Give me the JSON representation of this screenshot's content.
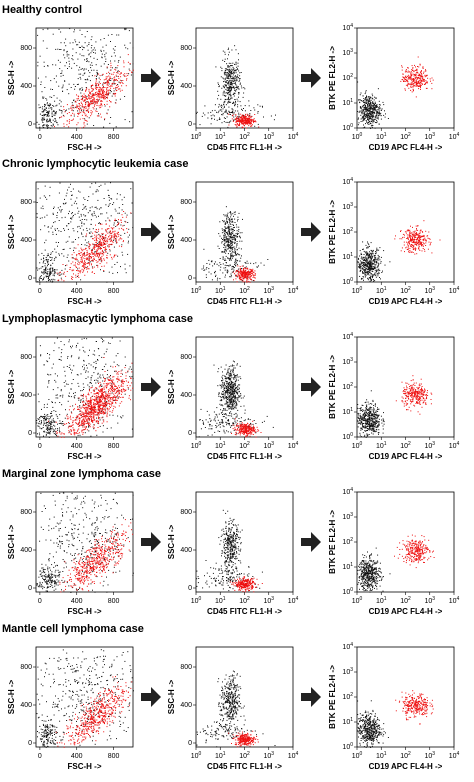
{
  "figure": {
    "rows": [
      {
        "title": "Healthy control"
      },
      {
        "title": "Chronic lymphocytic leukemia case"
      },
      {
        "title": "Lymphoplasmacytic lymphoma case"
      },
      {
        "title": "Marginal zone lymphoma case"
      },
      {
        "title": "Mantle cell lymphoma case"
      }
    ],
    "colors": {
      "gated": "#ee1111",
      "ungated": "#111111",
      "arrow": "#222222"
    }
  },
  "chart_data": [
    {
      "type": "scatter",
      "panel": "FSC vs SSC",
      "xlabel": "FSC-H ->",
      "ylabel": "SSC-H ->",
      "xlim": [
        0,
        1023
      ],
      "ylim": [
        0,
        1023
      ],
      "xticks": [
        "0",
        "400",
        "800"
      ],
      "yticks": [
        "0",
        "400",
        "800"
      ],
      "series_colors": {
        "gated": "red",
        "ungated": "black"
      }
    },
    {
      "type": "scatter",
      "panel": "CD45 vs SSC",
      "xlabel": "CD45 FITC FL1-H ->",
      "ylabel": "SSC-H ->",
      "xscale": "log",
      "xlim": [
        1,
        10000
      ],
      "ylim": [
        0,
        1023
      ],
      "xticks": [
        "10",
        "10",
        "10",
        "10",
        "10"
      ],
      "xtick_exponents": [
        "0",
        "1",
        "2",
        "3",
        "4"
      ],
      "yticks": [
        "0",
        "400",
        "800"
      ]
    },
    {
      "type": "scatter",
      "panel": "CD19 vs BTK",
      "xlabel": "CD19 APC FL4-H ->",
      "ylabel": "BTK PE FL2-H ->",
      "xscale": "log",
      "yscale": "log",
      "xlim": [
        1,
        10000
      ],
      "ylim": [
        1,
        10000
      ],
      "xticks": [
        "10",
        "10",
        "10",
        "10",
        "10"
      ],
      "xtick_exponents": [
        "0",
        "1",
        "2",
        "3",
        "4"
      ],
      "yticks": [
        "10",
        "10",
        "10",
        "10",
        "10"
      ],
      "ytick_exponents": [
        "0",
        "1",
        "2",
        "3",
        "4"
      ]
    }
  ]
}
